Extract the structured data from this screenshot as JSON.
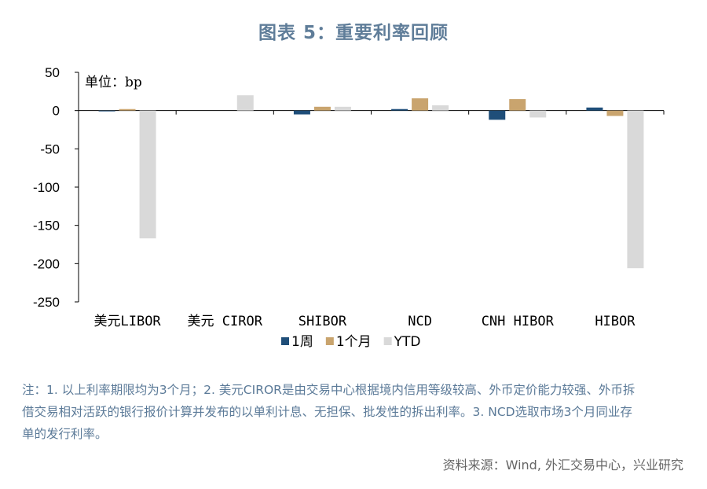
{
  "title": "图表 5：重要利率回顾",
  "chart_data": {
    "type": "bar",
    "unit_label": "单位：bp",
    "categories": [
      "美元LIBOR",
      "美元 CIROR",
      "SHIBOR",
      "NCD",
      "CNH HIBOR",
      "HIBOR"
    ],
    "series": [
      {
        "name": "1周",
        "color": "#1f4e79",
        "values": [
          -1,
          0,
          -5,
          2,
          -12,
          4
        ]
      },
      {
        "name": "1个月",
        "color": "#c9a46e",
        "values": [
          2,
          0,
          5,
          16,
          15,
          -7
        ]
      },
      {
        "name": "YTD",
        "color": "#d9d9d9",
        "values": [
          -167,
          20,
          5,
          7,
          -9,
          -206
        ]
      }
    ],
    "y_ticks": [
      50,
      0,
      -50,
      -100,
      -150,
      -200,
      -250
    ],
    "ylim": [
      -250,
      50
    ],
    "grid": false,
    "legend_position": "bottom"
  },
  "note": "注：1. 以上利率期限均为3个月；2. 美元CIROR是由交易中心根据境内信用等级较高、外币定价能力较强、外币拆借交易相对活跃的银行报价计算并发布的以单利计息、无担保、批发性的拆出利率。3. NCD选取市场3个月同业存单的发行利率。",
  "source": "资料来源：Wind, 外汇交易中心，兴业研究"
}
